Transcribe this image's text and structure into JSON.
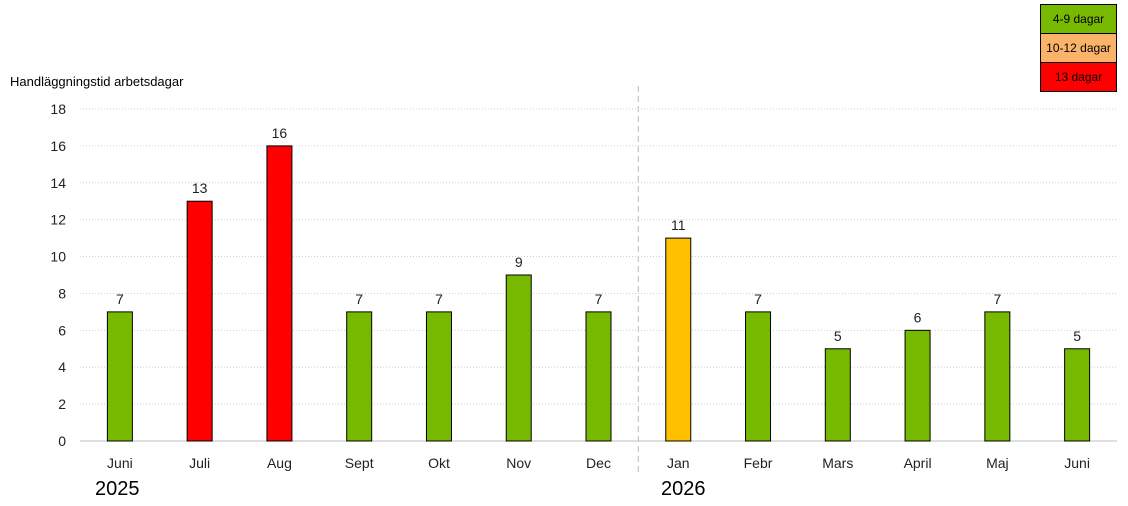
{
  "chart_data": {
    "type": "bar",
    "ylabel": "Handläggningstid arbetsdagar",
    "ylim": [
      0,
      18
    ],
    "yticks": [
      0,
      2,
      4,
      6,
      8,
      10,
      12,
      14,
      16,
      18
    ],
    "grid": true,
    "categories": [
      "Juni",
      "Juli",
      "Aug",
      "Sept",
      "Okt",
      "Nov",
      "Dec",
      "Jan",
      "Febr",
      "Mars",
      "April",
      "Maj",
      "Juni"
    ],
    "values": [
      7,
      13,
      16,
      7,
      7,
      9,
      7,
      11,
      7,
      5,
      6,
      7,
      5
    ],
    "bar_colors": [
      "#76b900",
      "#ff0000",
      "#ff0000",
      "#76b900",
      "#76b900",
      "#76b900",
      "#76b900",
      "#ffc000",
      "#76b900",
      "#76b900",
      "#76b900",
      "#76b900",
      "#76b900"
    ],
    "years": [
      "2025",
      "2026"
    ],
    "legend": [
      {
        "label": "4-9 dagar",
        "color": "#76b900"
      },
      {
        "label": "10-12 dagar",
        "color": "#fbb36a"
      },
      {
        "label": "13 dagar",
        "color": "#ff0000"
      }
    ],
    "legend_position": "top-right"
  }
}
